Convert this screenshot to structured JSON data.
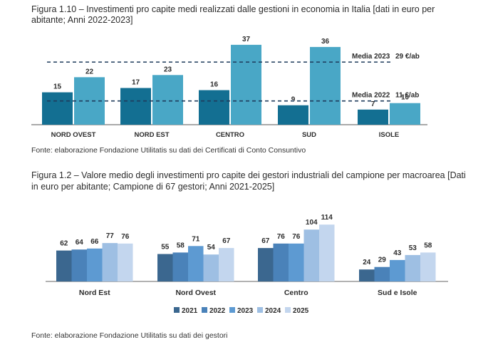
{
  "chart_data": [
    {
      "type": "bar",
      "title": "Figura 1.10 – Investimenti pro capite medi realizzati dalle gestioni in economia in Italia [dati in euro per abitante; Anni 2022-2023]",
      "categories": [
        "NORD OVEST",
        "NORD EST",
        "CENTRO",
        "SUD",
        "ISOLE"
      ],
      "series": [
        {
          "name": "2022",
          "values": [
            15,
            17,
            16,
            9,
            7
          ],
          "color": "#136f92"
        },
        {
          "name": "2023",
          "values": [
            22,
            23,
            37,
            36,
            10
          ],
          "color": "#49a7c6"
        }
      ],
      "reference_lines": [
        {
          "label": "Media 2023",
          "value_label": "29 €/ab",
          "value": 29
        },
        {
          "label": "Media 2022",
          "value_label": "11 €/ab",
          "value": 11
        }
      ],
      "ylim": [
        0,
        40
      ],
      "source": "Fonte: elaborazione Fondazione Utilitatis su dati dei Certificati di Conto Consuntivo"
    },
    {
      "type": "bar",
      "title": "Figura 1.2 – Valore medio degli investimenti pro capite dei gestori industriali del campione per macroarea [Dati in euro per abitante; Campione di 67 gestori; Anni 2021-2025]",
      "categories": [
        "Nord Est",
        "Nord Ovest",
        "Centro",
        "Sud e Isole"
      ],
      "series": [
        {
          "name": "2021",
          "values": [
            62,
            55,
            67,
            24
          ],
          "color": "#3b678f"
        },
        {
          "name": "2022",
          "values": [
            64,
            58,
            76,
            29
          ],
          "color": "#4a82b9"
        },
        {
          "name": "2023",
          "values": [
            66,
            71,
            76,
            43
          ],
          "color": "#5d9ad2"
        },
        {
          "name": "2024",
          "values": [
            77,
            54,
            104,
            53
          ],
          "color": "#9ebfe3"
        },
        {
          "name": "2025",
          "values": [
            76,
            67,
            114,
            58
          ],
          "color": "#c3d6ee"
        }
      ],
      "ylim": [
        0,
        120
      ],
      "source": "Fonte: elaborazione Fondazione Utilitatis su dati dei gestori"
    }
  ]
}
